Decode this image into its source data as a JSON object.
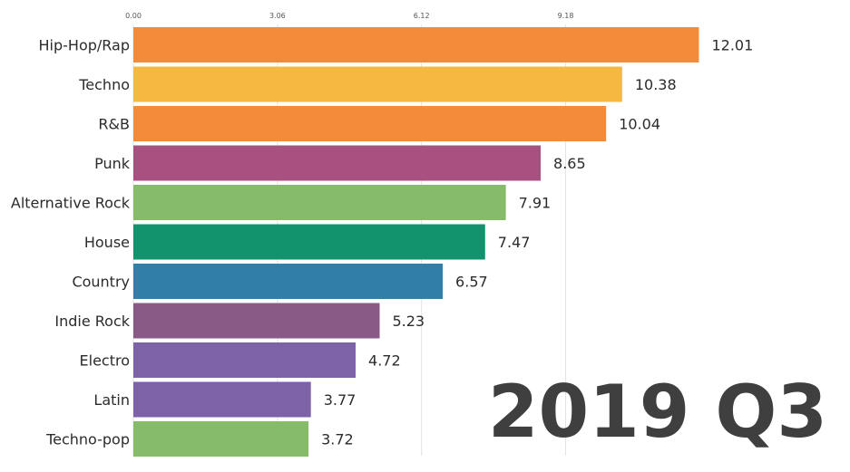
{
  "chart_data": {
    "type": "bar",
    "orientation": "horizontal",
    "title": "",
    "xlabel": "",
    "ylabel": "",
    "period": "2019 Q3",
    "xlim": [
      0,
      13.6
    ],
    "x_ticks": [
      "0.00",
      "3.06",
      "6.12",
      "9.18"
    ],
    "x_tick_values": [
      0,
      3.06,
      6.12,
      9.18
    ],
    "grid": true,
    "categories": [
      "Hip-Hop/Rap",
      "Techno",
      "R&B",
      "Punk",
      "Alternative Rock",
      "House",
      "Country",
      "Indie Rock",
      "Electro",
      "Latin",
      "Techno-pop"
    ],
    "values": [
      12.01,
      10.38,
      10.04,
      8.65,
      7.91,
      7.47,
      6.57,
      5.23,
      4.72,
      3.77,
      3.72
    ],
    "value_labels": [
      "12.01",
      "10.38",
      "10.04",
      "8.65",
      "7.91",
      "7.47",
      "6.57",
      "5.23",
      "4.72",
      "3.77",
      "3.72"
    ],
    "colors": [
      "#f28c3b",
      "#f5b942",
      "#f28c3b",
      "#a8507f",
      "#86bb6a",
      "#13936d",
      "#317fa8",
      "#8a5a86",
      "#7d62a7",
      "#7d62a7",
      "#86bb6a"
    ]
  }
}
